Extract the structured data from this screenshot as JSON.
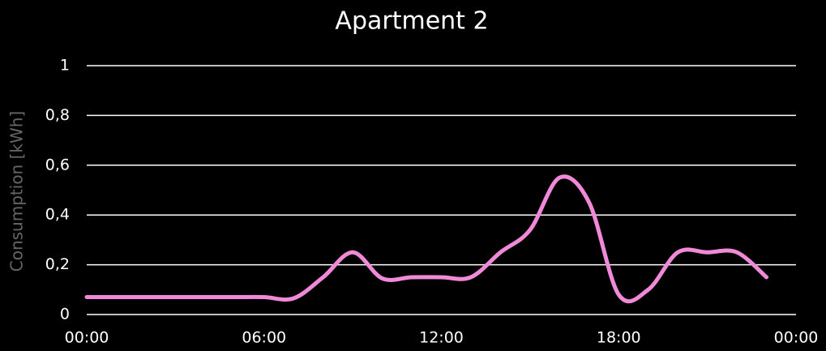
{
  "chart_data": {
    "type": "line",
    "title": "Apartment 2",
    "y_label": "Consumption [kWh]",
    "x": [
      0,
      1,
      2,
      3,
      4,
      5,
      6,
      7,
      8,
      9,
      10,
      11,
      12,
      13,
      14,
      15,
      16,
      17,
      18,
      19,
      20,
      21,
      22,
      23
    ],
    "series": [
      {
        "name": "Apartment 2",
        "color": "#f08ad8",
        "values": [
          0.07,
          0.07,
          0.07,
          0.07,
          0.07,
          0.07,
          0.07,
          0.065,
          0.15,
          0.25,
          0.145,
          0.15,
          0.15,
          0.15,
          0.25,
          0.34,
          0.55,
          0.45,
          0.08,
          0.1,
          0.25,
          0.25,
          0.25,
          0.15
        ]
      }
    ],
    "xlim": [
      0,
      24
    ],
    "xticks": [
      {
        "value": 0,
        "label": "00:00"
      },
      {
        "value": 6,
        "label": "06:00"
      },
      {
        "value": 12,
        "label": "12:00"
      },
      {
        "value": 18,
        "label": "18:00"
      },
      {
        "value": 24,
        "label": "00:00"
      }
    ],
    "ylim": [
      0,
      1
    ],
    "yticks": [
      0,
      {
        "value": 0.2,
        "label": "0,2"
      },
      {
        "value": 0.4,
        "label": "0,4"
      },
      {
        "value": 0.6,
        "label": "0,6"
      },
      {
        "value": 0.8,
        "label": "0,8"
      },
      1
    ],
    "grid": true
  }
}
